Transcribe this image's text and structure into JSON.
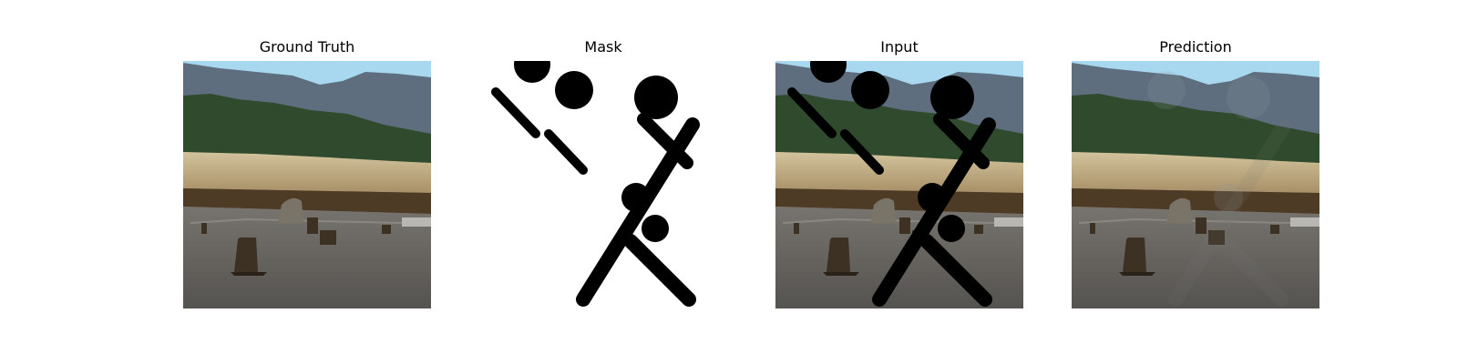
{
  "figure": {
    "panels": [
      {
        "title": "Ground Truth",
        "kind": "photo"
      },
      {
        "title": "Mask",
        "kind": "mask"
      },
      {
        "title": "Input",
        "kind": "masked-photo"
      },
      {
        "title": "Prediction",
        "kind": "inpainted-photo"
      }
    ]
  },
  "colors": {
    "sky": "#a8d8f0",
    "mountain": "#5e6e7e",
    "forest": "#2f4a2c",
    "dry_field": "#c4b088",
    "mud_band": "#4e3b26",
    "ground": "#6a6865",
    "stump": "#3d3124",
    "mask_stroke": "#000000",
    "mask_background": "#ffffff"
  }
}
